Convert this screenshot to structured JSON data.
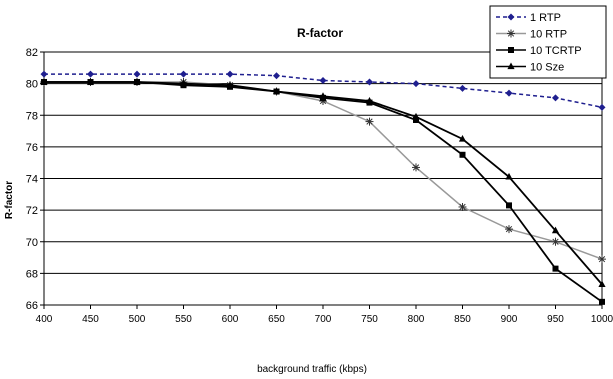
{
  "chart_data": {
    "type": "line",
    "title": "R-factor",
    "xlabel": "background traffic (kbps)",
    "ylabel": "R-factor",
    "x": [
      400,
      450,
      500,
      550,
      600,
      650,
      700,
      750,
      800,
      850,
      900,
      950,
      1000
    ],
    "xlim": [
      400,
      1000
    ],
    "ylim": [
      66,
      82
    ],
    "x_ticks": [
      "400",
      "450",
      "500",
      "550",
      "600",
      "650",
      "700",
      "750",
      "800",
      "850",
      "900",
      "950",
      "1000"
    ],
    "y_ticks": [
      "66",
      "68",
      "70",
      "72",
      "74",
      "76",
      "78",
      "80",
      "82"
    ],
    "grid": "horizontal",
    "legend_position": "top-right",
    "series": [
      {
        "name": "1 RTP",
        "color": "#1f1f8f",
        "style": "dashed",
        "marker": "diamond",
        "values": [
          80.6,
          80.6,
          80.6,
          80.6,
          80.6,
          80.5,
          80.2,
          80.1,
          80.0,
          79.7,
          79.4,
          79.1,
          78.5
        ]
      },
      {
        "name": "10 RTP",
        "color": "#999999",
        "style": "solid",
        "marker": "asterisk",
        "values": [
          80.1,
          80.1,
          80.1,
          80.1,
          79.9,
          79.5,
          78.9,
          77.6,
          74.7,
          72.2,
          70.8,
          70.0,
          68.9
        ]
      },
      {
        "name": "10 TCRTP",
        "color": "#000000",
        "style": "solid",
        "marker": "square",
        "values": [
          80.1,
          80.1,
          80.1,
          79.9,
          79.8,
          79.5,
          79.1,
          78.8,
          77.7,
          75.5,
          72.3,
          68.3,
          66.2
        ]
      },
      {
        "name": "10 Sze",
        "color": "#000000",
        "style": "solid",
        "marker": "triangle",
        "values": [
          80.1,
          80.1,
          80.1,
          80.0,
          79.9,
          79.5,
          79.2,
          78.9,
          77.9,
          76.5,
          74.1,
          70.7,
          67.3
        ]
      }
    ]
  }
}
